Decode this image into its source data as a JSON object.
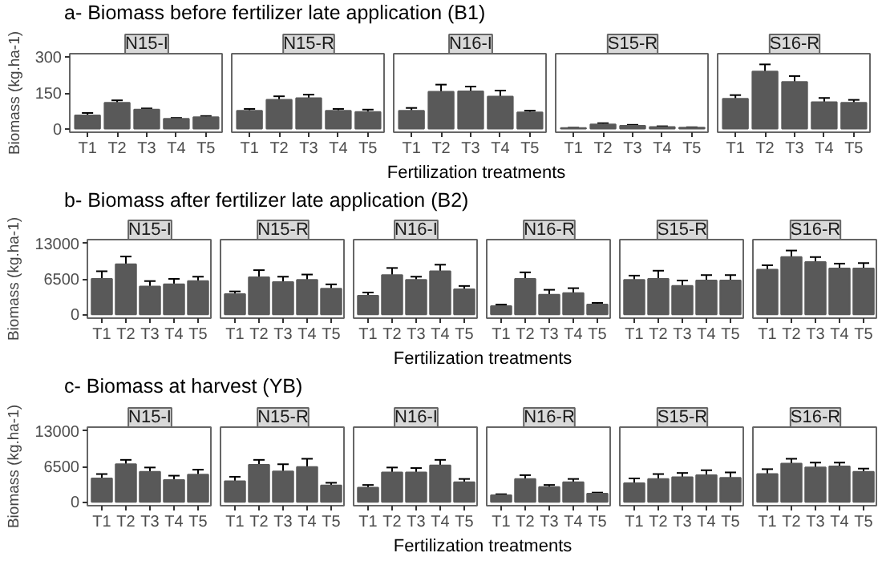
{
  "chart_data": [
    {
      "type": "bar",
      "title": "N15-I",
      "annotations": [
        "a- Biomass before fertilizer late application (B1)"
      ],
      "ylabel": "Biomass (kg.ha-1)",
      "categories": [
        "T1",
        "T2",
        "T3",
        "T4",
        "T5"
      ],
      "values": [
        56,
        109,
        80,
        41,
        48
      ],
      "errors": [
        10,
        10,
        5,
        4,
        5
      ],
      "color": "#595959",
      "ylim": [
        -15,
        315
      ],
      "yticks": [
        0,
        150,
        300
      ]
    },
    {
      "type": "bar",
      "title": "N15-R",
      "categories": [
        "T1",
        "T2",
        "T3",
        "T4",
        "T5"
      ],
      "values": [
        75,
        121,
        128,
        75,
        70
      ],
      "errors": [
        8,
        15,
        15,
        8,
        10
      ],
      "color": "#595959",
      "ylim": [
        -15,
        315
      ],
      "yticks": [
        0,
        150,
        300
      ],
      "tick_labels": "x"
    },
    {
      "type": "bar",
      "title": "N16-I",
      "xlabel": "Fertilization treatments",
      "categories": [
        "T1",
        "T2",
        "T3",
        "T4",
        "T5"
      ],
      "values": [
        75,
        155,
        157,
        135,
        68
      ],
      "errors": [
        12,
        30,
        20,
        25,
        8
      ],
      "color": "#595959",
      "ylim": [
        -15,
        315
      ],
      "yticks": [
        0,
        150,
        300
      ],
      "tick_labels": "x"
    },
    {
      "type": "bar",
      "title": "S15-R",
      "categories": [
        "T1",
        "T2",
        "T3",
        "T4",
        "T5"
      ],
      "values": [
        3,
        18,
        12,
        7,
        4
      ],
      "errors": [
        1,
        5,
        4,
        3,
        2
      ],
      "color": "#595959",
      "ylim": [
        -15,
        315
      ],
      "yticks": [
        0,
        150,
        300
      ],
      "tick_labels": "x"
    },
    {
      "type": "bar",
      "title": "S16-R",
      "categories": [
        "T1",
        "T2",
        "T3",
        "T4",
        "T5"
      ],
      "values": [
        126,
        240,
        196,
        111,
        109
      ],
      "errors": [
        15,
        30,
        25,
        18,
        12
      ],
      "color": "#595959",
      "ylim": [
        -15,
        315
      ],
      "yticks": [
        0,
        150,
        300
      ],
      "tick_labels": "x"
    },
    {
      "type": "bar",
      "title": "N15-I",
      "annotations": [
        "b- Biomass after fertilizer late application (B2)"
      ],
      "ylabel": "Biomass (kg.ha-1)",
      "categories": [
        "T1",
        "T2",
        "T3",
        "T4",
        "T5"
      ],
      "values": [
        6500,
        9200,
        5100,
        5500,
        6100
      ],
      "errors": [
        1400,
        1400,
        1000,
        1000,
        800
      ],
      "color": "#595959",
      "ylim": [
        -700,
        13700
      ],
      "yticks": [
        0,
        6500,
        13000
      ]
    },
    {
      "type": "bar",
      "title": "N15-R",
      "categories": [
        "T1",
        "T2",
        "T3",
        "T4",
        "T5"
      ],
      "values": [
        3700,
        6800,
        5900,
        6300,
        4700
      ],
      "errors": [
        500,
        1300,
        1000,
        1000,
        800
      ],
      "color": "#595959",
      "ylim": [
        -700,
        13700
      ],
      "yticks": [
        0,
        6500,
        13000
      ],
      "tick_labels": "x"
    },
    {
      "type": "bar",
      "title": "N16-I",
      "xlabel": "Fertilization treatments",
      "categories": [
        "T1",
        "T2",
        "T3",
        "T4",
        "T5"
      ],
      "values": [
        3400,
        7200,
        6300,
        7900,
        4600
      ],
      "errors": [
        600,
        1300,
        600,
        1200,
        600
      ],
      "color": "#595959",
      "ylim": [
        -700,
        13700
      ],
      "yticks": [
        0,
        6500,
        13000
      ],
      "tick_labels": "x"
    },
    {
      "type": "bar",
      "title": "N16-R",
      "categories": [
        "T1",
        "T2",
        "T3",
        "T4",
        "T5"
      ],
      "values": [
        1500,
        6500,
        3600,
        3900,
        1800
      ],
      "errors": [
        300,
        1200,
        900,
        900,
        300
      ],
      "color": "#595959",
      "ylim": [
        -700,
        13700
      ],
      "yticks": [
        0,
        6500,
        13000
      ],
      "tick_labels": "x"
    },
    {
      "type": "bar",
      "title": "S15-R",
      "categories": [
        "T1",
        "T2",
        "T3",
        "T4",
        "T5"
      ],
      "values": [
        6300,
        6500,
        5200,
        6200,
        6200
      ],
      "errors": [
        800,
        1500,
        1000,
        1000,
        1000
      ],
      "color": "#595959",
      "ylim": [
        -700,
        13700
      ],
      "yticks": [
        0,
        6500,
        13000
      ],
      "tick_labels": "x"
    },
    {
      "type": "bar",
      "title": "S16-R",
      "categories": [
        "T1",
        "T2",
        "T3",
        "T4",
        "T5"
      ],
      "values": [
        8200,
        10500,
        9600,
        8400,
        8400
      ],
      "errors": [
        800,
        1200,
        900,
        900,
        1000
      ],
      "color": "#595959",
      "ylim": [
        -700,
        13700
      ],
      "yticks": [
        0,
        6500,
        13000
      ],
      "tick_labels": "x"
    },
    {
      "type": "bar",
      "title": "N15-I",
      "annotations": [
        "c- Biomass at harvest (YB)"
      ],
      "ylabel": "Biomass (kg.ha-1)",
      "categories": [
        "T1",
        "T2",
        "T3",
        "T4",
        "T5"
      ],
      "values": [
        4300,
        6900,
        5500,
        4000,
        5000
      ],
      "errors": [
        800,
        800,
        800,
        800,
        900
      ],
      "color": "#595959",
      "ylim": [
        -700,
        13700
      ],
      "yticks": [
        0,
        6500,
        13000
      ]
    },
    {
      "type": "bar",
      "title": "N15-R",
      "categories": [
        "T1",
        "T2",
        "T3",
        "T4",
        "T5"
      ],
      "values": [
        3800,
        6800,
        5600,
        6400,
        3000
      ],
      "errors": [
        800,
        900,
        1300,
        1500,
        500
      ],
      "color": "#595959",
      "ylim": [
        -700,
        13700
      ],
      "yticks": [
        0,
        6500,
        13000
      ],
      "tick_labels": "x"
    },
    {
      "type": "bar",
      "title": "N16-I",
      "xlabel": "Fertilization treatments",
      "categories": [
        "T1",
        "T2",
        "T3",
        "T4",
        "T5"
      ],
      "values": [
        2600,
        5400,
        5400,
        6700,
        3600
      ],
      "errors": [
        500,
        900,
        800,
        1000,
        600
      ],
      "color": "#595959",
      "ylim": [
        -700,
        13700
      ],
      "yticks": [
        0,
        6500,
        13000
      ],
      "tick_labels": "x"
    },
    {
      "type": "bar",
      "title": "N16-R",
      "categories": [
        "T1",
        "T2",
        "T3",
        "T4",
        "T5"
      ],
      "values": [
        1200,
        4200,
        2700,
        3600,
        1500
      ],
      "errors": [
        200,
        700,
        400,
        600,
        200
      ],
      "color": "#595959",
      "ylim": [
        -700,
        13700
      ],
      "yticks": [
        0,
        6500,
        13000
      ],
      "tick_labels": "x"
    },
    {
      "type": "bar",
      "title": "S15-R",
      "categories": [
        "T1",
        "T2",
        "T3",
        "T4",
        "T5"
      ],
      "values": [
        3400,
        4200,
        4500,
        4900,
        4400
      ],
      "errors": [
        900,
        900,
        800,
        900,
        1000
      ],
      "color": "#595959",
      "ylim": [
        -700,
        13700
      ],
      "yticks": [
        0,
        6500,
        13000
      ],
      "tick_labels": "x"
    },
    {
      "type": "bar",
      "title": "S16-R",
      "categories": [
        "T1",
        "T2",
        "T3",
        "T4",
        "T5"
      ],
      "values": [
        5100,
        7000,
        6300,
        6500,
        5500
      ],
      "errors": [
        900,
        900,
        900,
        700,
        600
      ],
      "color": "#595959",
      "ylim": [
        -700,
        13700
      ],
      "yticks": [
        0,
        6500,
        13000
      ],
      "tick_labels": "x"
    }
  ]
}
